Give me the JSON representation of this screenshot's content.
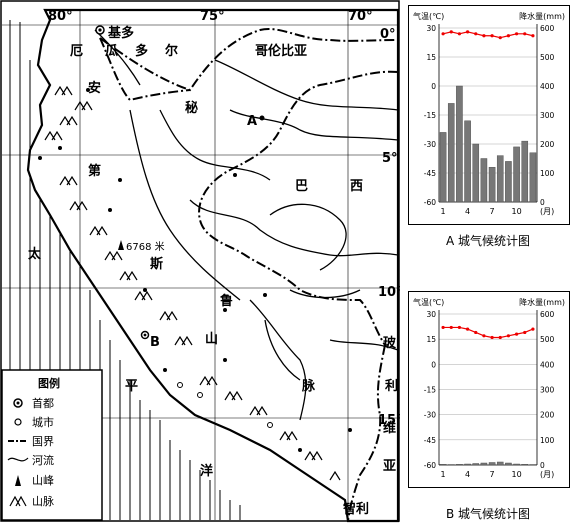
{
  "map": {
    "lon_labels": [
      "80°",
      "75°",
      "70°"
    ],
    "lat_labels": [
      "0°",
      "5°",
      "10°",
      "15°"
    ],
    "countries": {
      "ecuador": [
        "厄",
        "瓜",
        "多",
        "尔"
      ],
      "colombia": "哥伦比亚",
      "peru": [
        "秘",
        "鲁"
      ],
      "brazil": [
        "巴",
        "西"
      ],
      "bolivia": [
        "玻",
        "利",
        "维",
        "亚"
      ],
      "chile": "智利"
    },
    "mountains_label": [
      "安",
      "第",
      "斯",
      "山",
      "脉"
    ],
    "ocean_label": [
      "太",
      "平",
      "洋"
    ],
    "cities": {
      "quito": "基多",
      "a": "A",
      "b": "B"
    },
    "peak_label": "6768 米",
    "legend": {
      "title": "图例",
      "items": [
        "首都",
        "城市",
        "国界",
        "河流",
        "山峰",
        "山脉"
      ]
    }
  },
  "chart_data": [
    {
      "type": "bar",
      "caption": "A 城气候统计图",
      "left_axis_label": "气温(℃)",
      "right_axis_label": "降水量(mm)",
      "x": [
        1,
        2,
        3,
        4,
        5,
        6,
        7,
        8,
        9,
        10,
        11,
        12
      ],
      "x_tick_labels": [
        "1",
        "4",
        "7",
        "10"
      ],
      "x_unit": "(月)",
      "temperature_axis": [
        -60,
        -45,
        -30,
        -15,
        0,
        15,
        30
      ],
      "precip_axis": [
        0,
        100,
        200,
        300,
        400,
        500,
        600
      ],
      "temperature": [
        27,
        28,
        27,
        28,
        27,
        26,
        26,
        25,
        26,
        27,
        27,
        26
      ],
      "precipitation": [
        240,
        340,
        400,
        280,
        200,
        150,
        120,
        160,
        140,
        190,
        210,
        170
      ]
    },
    {
      "type": "bar",
      "caption": "B 城气候统计图",
      "left_axis_label": "气温(℃)",
      "right_axis_label": "降水量(mm)",
      "x": [
        1,
        2,
        3,
        4,
        5,
        6,
        7,
        8,
        9,
        10,
        11,
        12
      ],
      "x_tick_labels": [
        "1",
        "4",
        "7",
        "10"
      ],
      "x_unit": "(月)",
      "temperature_axis": [
        -60,
        -45,
        -30,
        -15,
        0,
        15,
        30
      ],
      "precip_axis": [
        0,
        100,
        200,
        300,
        400,
        500,
        600
      ],
      "temperature": [
        22,
        22,
        22,
        21,
        19,
        17,
        16,
        16,
        17,
        18,
        19,
        21
      ],
      "precipitation": [
        3,
        2,
        3,
        4,
        6,
        8,
        10,
        12,
        8,
        4,
        3,
        2
      ]
    }
  ]
}
